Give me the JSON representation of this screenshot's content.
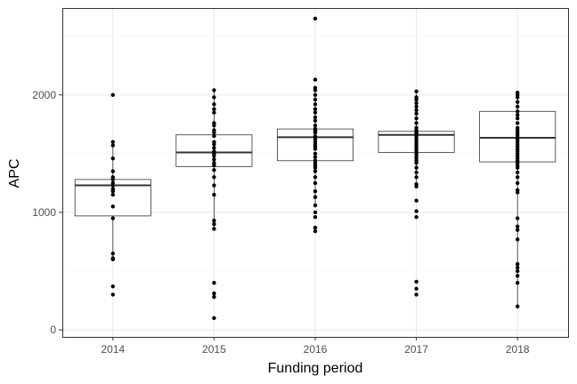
{
  "chart_data": {
    "type": "box",
    "xlabel": "Funding period",
    "ylabel": "APC",
    "ylim": [
      -60,
      2740
    ],
    "y_ticks": [
      0,
      1000,
      2000
    ],
    "y_tick_labels": [
      "0",
      "1000",
      "2000"
    ],
    "grid": true,
    "categories": [
      "2014",
      "2015",
      "2016",
      "2017",
      "2018"
    ],
    "boxes": [
      {
        "category": "2014",
        "lower_whisker": 600,
        "q1": 970,
        "median": 1230,
        "q3": 1280,
        "upper_whisker": 1600
      },
      {
        "category": "2015",
        "lower_whisker": 850,
        "q1": 1390,
        "median": 1510,
        "q3": 1660,
        "upper_whisker": 2040
      },
      {
        "category": "2016",
        "lower_whisker": 1040,
        "q1": 1440,
        "median": 1640,
        "q3": 1710,
        "upper_whisker": 2020
      },
      {
        "category": "2017",
        "lower_whisker": 1230,
        "q1": 1510,
        "median": 1660,
        "q3": 1690,
        "upper_whisker": 2020
      },
      {
        "category": "2018",
        "lower_whisker": 200,
        "q1": 1430,
        "median": 1635,
        "q3": 1860,
        "upper_whisker": 2020
      }
    ],
    "points": [
      {
        "category": "2014",
        "values": [
          2000,
          1600,
          1570,
          1460,
          1350,
          1300,
          1280,
          1250,
          1230,
          1200,
          1180,
          1150,
          1050,
          950,
          650,
          610,
          600,
          370,
          300
        ]
      },
      {
        "category": "2015",
        "values": [
          2040,
          1980,
          1920,
          1880,
          1850,
          1760,
          1740,
          1700,
          1680,
          1650,
          1600,
          1580,
          1550,
          1520,
          1500,
          1480,
          1450,
          1420,
          1400,
          1360,
          1300,
          1230,
          1150,
          930,
          900,
          860,
          400,
          310,
          280,
          100
        ]
      },
      {
        "category": "2016",
        "values": [
          2650,
          2130,
          2060,
          2040,
          2000,
          1960,
          1920,
          1880,
          1850,
          1810,
          1780,
          1740,
          1710,
          1700,
          1690,
          1680,
          1650,
          1640,
          1620,
          1600,
          1580,
          1560,
          1540,
          1500,
          1470,
          1440,
          1420,
          1400,
          1380,
          1350,
          1300,
          1250,
          1180,
          1130,
          1060,
          1000,
          960,
          870,
          840
        ]
      },
      {
        "category": "2017",
        "values": [
          2030,
          1980,
          1960,
          1930,
          1900,
          1870,
          1840,
          1800,
          1760,
          1720,
          1700,
          1690,
          1680,
          1670,
          1660,
          1640,
          1620,
          1600,
          1580,
          1560,
          1540,
          1520,
          1500,
          1480,
          1460,
          1440,
          1420,
          1380,
          1340,
          1300,
          1240,
          1220,
          1100,
          1010,
          960,
          410,
          350,
          300
        ]
      },
      {
        "category": "2018",
        "values": [
          2020,
          2000,
          1980,
          1940,
          1900,
          1860,
          1830,
          1800,
          1760,
          1720,
          1700,
          1680,
          1660,
          1640,
          1620,
          1600,
          1580,
          1560,
          1540,
          1520,
          1500,
          1480,
          1460,
          1440,
          1420,
          1400,
          1380,
          1340,
          1300,
          1250,
          1190,
          1170,
          950,
          880,
          850,
          770,
          560,
          530,
          500,
          460,
          400,
          200
        ]
      }
    ]
  }
}
